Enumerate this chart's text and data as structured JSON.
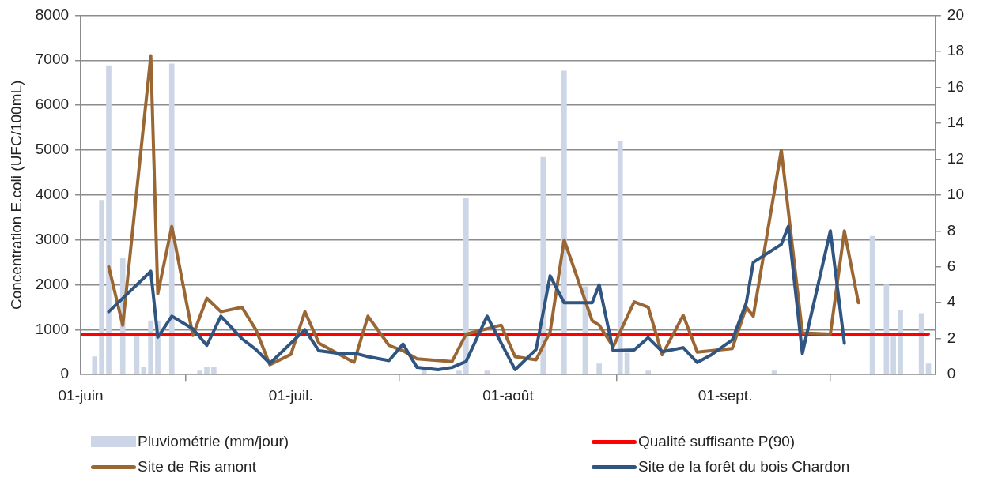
{
  "chart_data": {
    "type": "line",
    "ylabel": "Concentration E.coli (UFC/100mL)",
    "xlim": [
      "--06-01",
      "--10-01"
    ],
    "xticks": [
      {
        "value": "--06-01",
        "label": "01-juin"
      },
      {
        "value": "--07-01",
        "label": "01-juil."
      },
      {
        "value": "--08-01",
        "label": "01-août"
      },
      {
        "value": "--09-01",
        "label": "01-sept."
      },
      {
        "value": "--10-01",
        "label": null
      }
    ],
    "ylim": [
      0,
      8000
    ],
    "yticks": [
      0,
      1000,
      2000,
      3000,
      4000,
      5000,
      6000,
      7000,
      8000
    ],
    "y2lim": [
      0,
      20
    ],
    "y2ticks": [
      0,
      2,
      4,
      6,
      8,
      10,
      12,
      14,
      16,
      18,
      20
    ],
    "grid": "y",
    "legend": "bottom",
    "series": [
      {
        "name": "Pluviométrie (mm/jour)",
        "type": "bar",
        "axis": "y2",
        "color": "#cdd6e6",
        "x": [
          "--06-03",
          "--06-04",
          "--06-05",
          "--06-07",
          "--06-09",
          "--06-10",
          "--06-11",
          "--06-12",
          "--06-14",
          "--06-18",
          "--06-19",
          "--06-20",
          "--07-20",
          "--07-25",
          "--07-26",
          "--07-29",
          "--08-06",
          "--08-09",
          "--08-12",
          "--08-14",
          "--08-17",
          "--08-18",
          "--08-21",
          "--09-08",
          "--09-22",
          "--09-24",
          "--09-25",
          "--09-26",
          "--09-29",
          "--09-30"
        ],
        "values": [
          1.0,
          9.7,
          17.2,
          6.5,
          2.1,
          0.4,
          3.0,
          3.0,
          17.3,
          0.2,
          0.4,
          0.4,
          0.3,
          0.2,
          9.8,
          0.2,
          12.1,
          16.9,
          4.9,
          0.6,
          13.0,
          1.2,
          0.2,
          0.2,
          7.7,
          5.0,
          2.2,
          3.6,
          3.4,
          0.6
        ]
      },
      {
        "name": "Qualité suffisante P(90)",
        "color": "#ff0000",
        "x": [
          "--06-01",
          "--09-30"
        ],
        "values": [
          900,
          900
        ]
      },
      {
        "name": "Site de Ris amont",
        "color": "#9a6634",
        "x": [
          "--06-05",
          "--06-07",
          "--06-11",
          "--06-12",
          "--06-14",
          "--06-17",
          "--06-19",
          "--06-21",
          "--06-24",
          "--06-26",
          "--06-28",
          "--07-01",
          "--07-03",
          "--07-05",
          "--07-10",
          "--07-12",
          "--07-15",
          "--07-17",
          "--07-19",
          "--07-24",
          "--07-26",
          "--07-31",
          "--08-02",
          "--08-05",
          "--08-07",
          "--08-09",
          "--08-13",
          "--08-14",
          "--08-16",
          "--08-19",
          "--08-21",
          "--08-23",
          "--08-26",
          "--08-28",
          "--09-02",
          "--09-04",
          "--09-05",
          "--09-09",
          "--09-12",
          "--09-16",
          "--09-18",
          "--09-20"
        ],
        "values": [
          2400,
          1100,
          7100,
          1800,
          3300,
          870,
          1700,
          1400,
          1500,
          1000,
          220,
          450,
          1400,
          700,
          270,
          1300,
          650,
          530,
          350,
          290,
          900,
          1100,
          400,
          330,
          950,
          3000,
          1200,
          1100,
          620,
          1620,
          1500,
          440,
          1320,
          500,
          580,
          1500,
          1300,
          5000,
          930,
          900,
          3200,
          1600
        ]
      },
      {
        "name": "Site de la forêt du bois Chardon",
        "color": "#2f5580",
        "x": [
          "--06-05",
          "--06-11",
          "--06-12",
          "--06-14",
          "--06-17",
          "--06-19",
          "--06-21",
          "--06-24",
          "--06-26",
          "--06-28",
          "--07-03",
          "--07-05",
          "--07-08",
          "--07-10",
          "--07-12",
          "--07-15",
          "--07-17",
          "--07-19",
          "--07-22",
          "--07-24",
          "--07-26",
          "--07-29",
          "--08-02",
          "--08-05",
          "--08-07",
          "--08-09",
          "--08-13",
          "--08-14",
          "--08-16",
          "--08-19",
          "--08-21",
          "--08-23",
          "--08-26",
          "--08-28",
          "--08-30",
          "--09-02",
          "--09-04",
          "--09-05",
          "--09-09",
          "--09-10",
          "--09-12",
          "--09-16",
          "--09-18"
        ],
        "values": [
          1400,
          2300,
          830,
          1300,
          1020,
          650,
          1300,
          800,
          560,
          250,
          1000,
          530,
          470,
          480,
          400,
          310,
          680,
          160,
          110,
          160,
          290,
          1300,
          110,
          560,
          2200,
          1600,
          1600,
          2000,
          530,
          550,
          820,
          510,
          600,
          270,
          440,
          770,
          1600,
          2500,
          2900,
          3300,
          470,
          3200,
          700
        ]
      }
    ]
  }
}
